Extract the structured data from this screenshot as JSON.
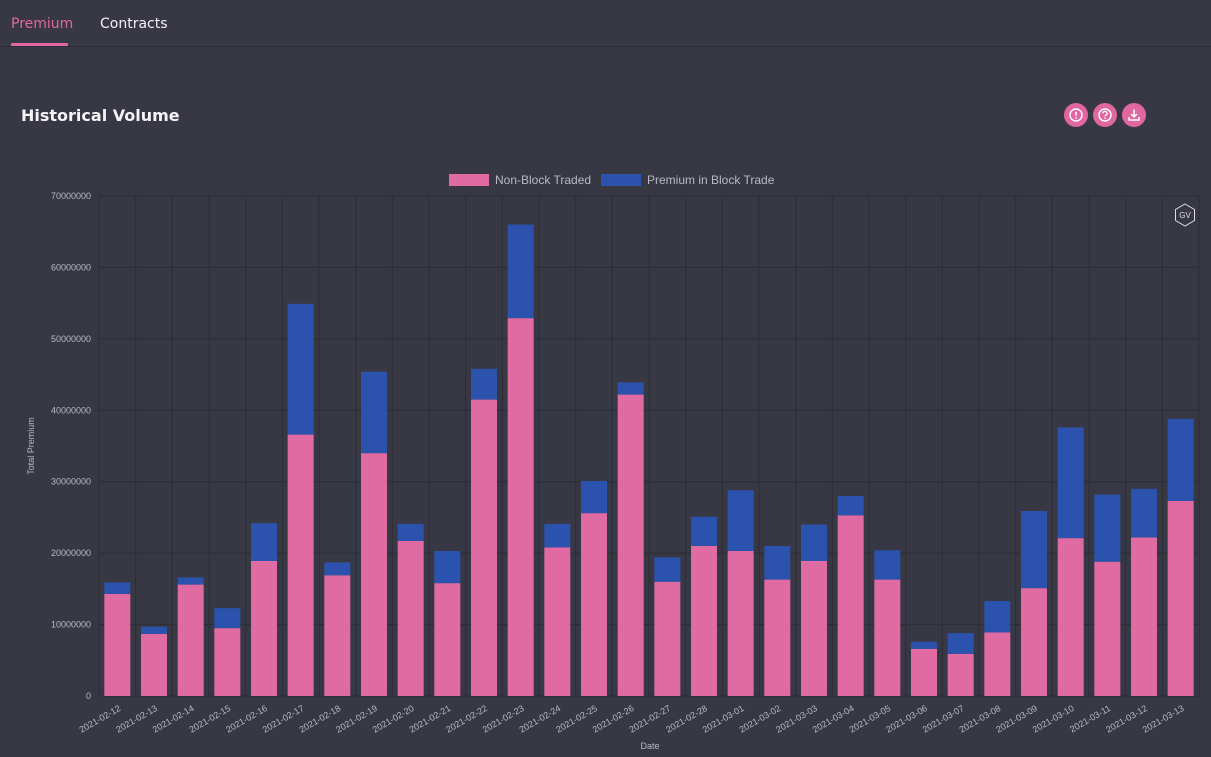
{
  "tabs": [
    {
      "label": "Premium",
      "active": true
    },
    {
      "label": "Contracts",
      "active": false
    }
  ],
  "panel": {
    "title": "Historical Volume",
    "actions": [
      "alert-icon",
      "help-icon",
      "download-icon"
    ]
  },
  "watermark": "GV",
  "colors": {
    "background": "#383845",
    "accent": "#e0679f",
    "non_block": "#e06ba3",
    "block": "#2b53ae",
    "grid": "#2c2c36",
    "axis_text": "#b9b9c2"
  },
  "chart_data": {
    "type": "bar",
    "stacked": true,
    "title": "",
    "xlabel": "Date",
    "ylabel": "Total Premium",
    "ylim": [
      0,
      70000000
    ],
    "yticks": [
      0,
      10000000,
      20000000,
      30000000,
      40000000,
      50000000,
      60000000,
      70000000
    ],
    "legend_position": "top-center",
    "grid": true,
    "categories": [
      "2021-02-12",
      "2021-02-13",
      "2021-02-14",
      "2021-02-15",
      "2021-02-16",
      "2021-02-17",
      "2021-02-18",
      "2021-02-19",
      "2021-02-20",
      "2021-02-21",
      "2021-02-22",
      "2021-02-23",
      "2021-02-24",
      "2021-02-25",
      "2021-02-26",
      "2021-02-27",
      "2021-02-28",
      "2021-03-01",
      "2021-03-02",
      "2021-03-03",
      "2021-03-04",
      "2021-03-05",
      "2021-03-06",
      "2021-03-07",
      "2021-03-08",
      "2021-03-09",
      "2021-03-10",
      "2021-03-11",
      "2021-03-12",
      "2021-03-13"
    ],
    "series": [
      {
        "name": "Non-Block Traded",
        "color": "#e06ba3",
        "values": [
          14300000,
          8700000,
          15600000,
          9500000,
          18900000,
          36600000,
          16900000,
          34000000,
          21700000,
          15800000,
          41500000,
          52900000,
          20800000,
          25600000,
          42200000,
          16000000,
          21000000,
          20300000,
          16300000,
          18900000,
          25300000,
          16300000,
          6600000,
          5900000,
          8900000,
          15100000,
          22100000,
          18800000,
          22200000,
          27300000
        ]
      },
      {
        "name": "Premium in Block Trade",
        "color": "#2b53ae",
        "values": [
          1600000,
          1000000,
          1000000,
          2800000,
          5300000,
          18300000,
          1800000,
          11400000,
          2400000,
          4500000,
          4300000,
          13100000,
          3300000,
          4500000,
          1700000,
          3400000,
          4100000,
          8500000,
          4700000,
          5100000,
          2700000,
          4100000,
          1000000,
          2900000,
          4400000,
          10800000,
          15500000,
          9400000,
          6800000,
          11500000
        ]
      }
    ]
  }
}
